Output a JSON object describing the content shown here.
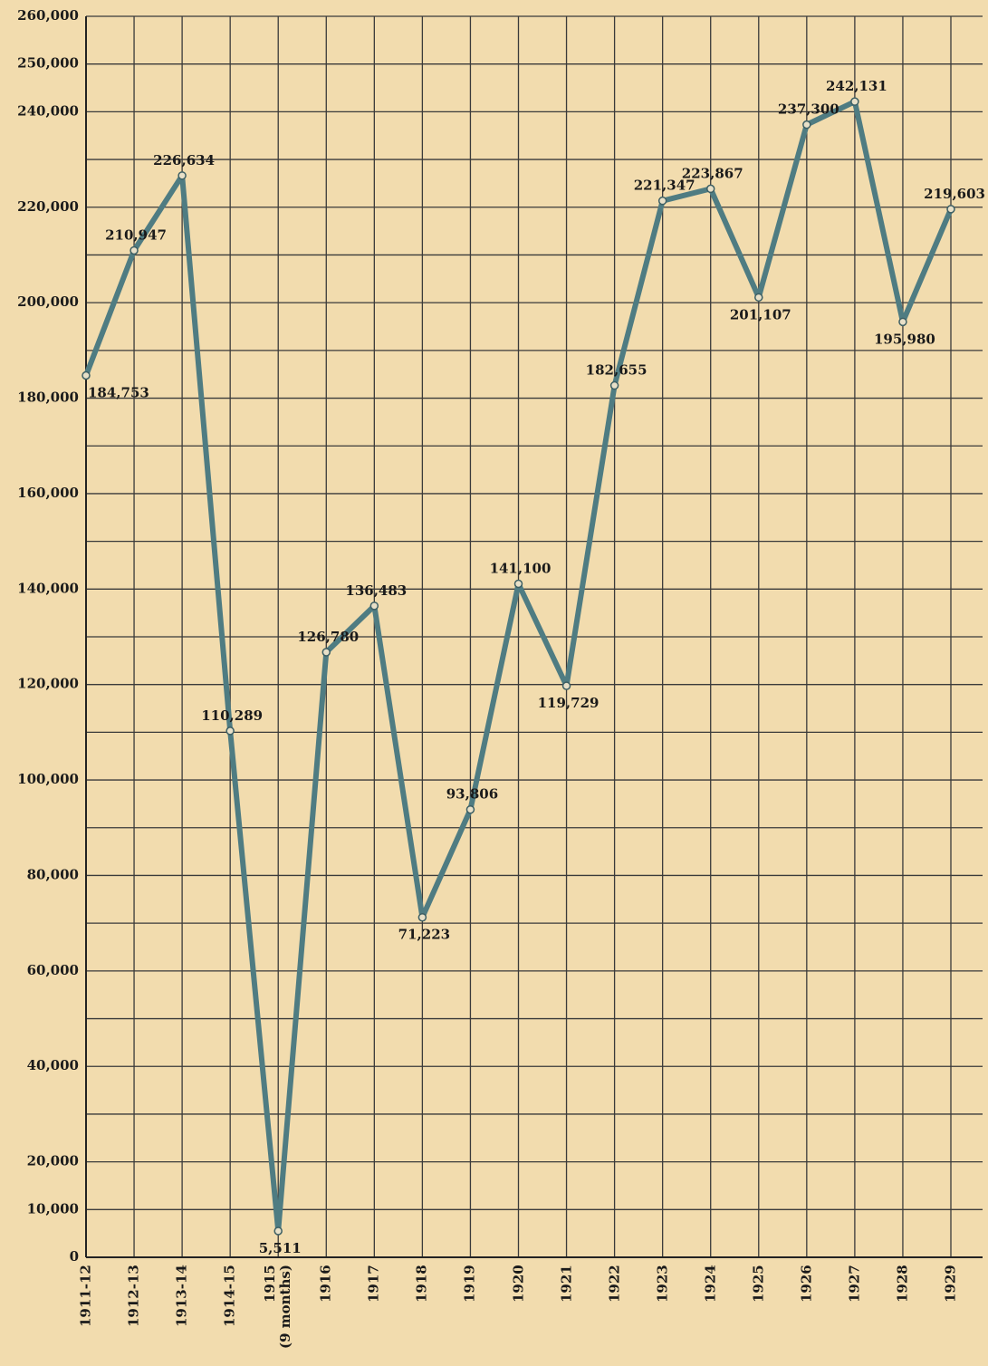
{
  "chart_data": {
    "type": "line",
    "categories": [
      "1911-12",
      "1912-13",
      "1913-14",
      "1914-15",
      "1915\n(9 months)",
      "1916",
      "1917",
      "1918",
      "1919",
      "1920",
      "1921",
      "1922",
      "1923",
      "1924",
      "1925",
      "1926",
      "1927",
      "1928",
      "1929"
    ],
    "values": [
      184753,
      210947,
      226634,
      110289,
      5511,
      126780,
      136483,
      71223,
      93806,
      141100,
      119729,
      182655,
      221347,
      223867,
      201107,
      237300,
      242131,
      195980,
      219603
    ],
    "value_labels": [
      "184,753",
      "210,947",
      "226,634",
      "110,289",
      "5,511",
      "126,780",
      "136,483",
      "71,223",
      "93,806",
      "141,100",
      "119,729",
      "182,655",
      "221,347",
      "223,867",
      "201,107",
      "237,300",
      "242,131",
      "195,980",
      "219,603"
    ],
    "color": "#4f7c82",
    "ylim": [
      0,
      260000
    ],
    "yticks": [
      0,
      {
        "value": 10000,
        "label": "10,000"
      },
      {
        "value": 20000,
        "label": "20,000"
      },
      {
        "value": 40000,
        "label": "40,000"
      },
      {
        "value": 60000,
        "label": "60,000"
      },
      {
        "value": 80000,
        "label": "80,000"
      },
      {
        "value": 100000,
        "label": "100,000"
      },
      {
        "value": 120000,
        "label": "120,000"
      },
      {
        "value": 140000,
        "label": "140,000"
      },
      {
        "value": 160000,
        "label": "160,000"
      },
      {
        "value": 180000,
        "label": "180,000"
      },
      {
        "value": 200000,
        "label": "200,000"
      },
      {
        "value": 220000,
        "label": "220,000"
      },
      {
        "value": 240000,
        "label": "240,000"
      },
      {
        "value": 250000,
        "label": "250,000"
      },
      {
        "value": 260000,
        "label": "260,000"
      }
    ],
    "yminor_ticks": [
      30000,
      50000,
      70000,
      90000,
      110000,
      130000,
      150000,
      170000,
      190000,
      210000,
      230000
    ],
    "grid": true
  }
}
